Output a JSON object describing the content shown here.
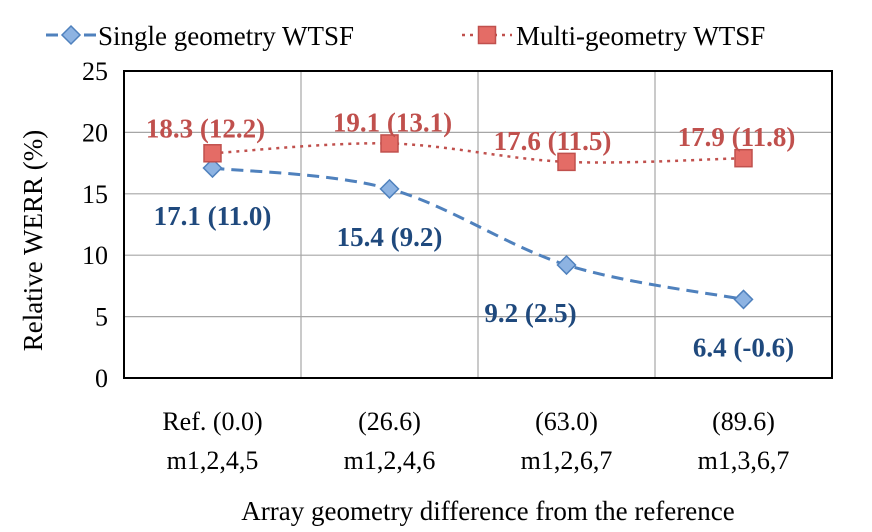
{
  "chart_data": {
    "type": "line",
    "title": "",
    "xlabel": "Array geometry difference from the reference",
    "ylabel": "Relative WERR  (%)",
    "ylim": [
      0,
      25
    ],
    "yticks": [
      "0",
      "5",
      "10",
      "15",
      "20",
      "25"
    ],
    "grid": true,
    "legend_position": "top",
    "categories": [
      [
        "Ref. (0.0)",
        "m1,2,4,5"
      ],
      [
        "(26.6)",
        "m1,2,4,6"
      ],
      [
        "(63.0)",
        "m1,2,6,7"
      ],
      [
        "(89.6)",
        "m1,3,6,7"
      ]
    ],
    "series": [
      {
        "name": "Single geometry WTSF",
        "values": [
          17.1,
          15.4,
          9.2,
          6.4
        ],
        "labels": [
          "17.1 (11.0)",
          "15.4 (9.2)",
          "9.2 (2.5)",
          "6.4 (-0.6)"
        ],
        "marker": "diamond",
        "line_style": "dashed",
        "color": "#4f81bd",
        "label_color": "#1f497d"
      },
      {
        "name": "Multi-geometry WTSF",
        "values": [
          18.3,
          19.1,
          17.6,
          17.9
        ],
        "labels": [
          "18.3 (12.2)",
          "19.1 (13.1)",
          "17.6 (11.5)",
          "17.9 (11.8)"
        ],
        "marker": "square",
        "line_style": "dotted",
        "color": "#c0504d",
        "label_color": "#c0504d"
      }
    ]
  }
}
